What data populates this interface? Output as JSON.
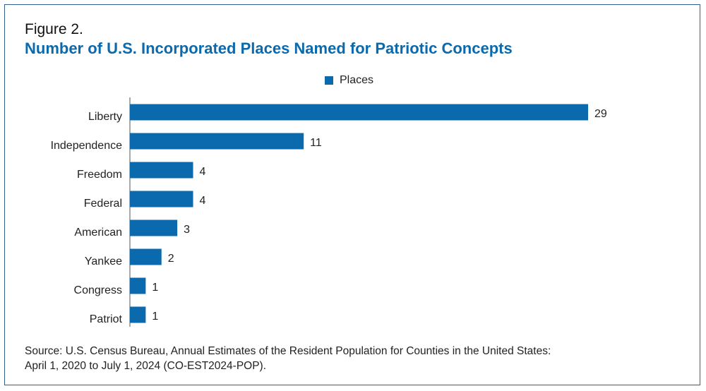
{
  "figure_label": "Figure 2.",
  "title": "Number of U.S. Incorporated Places Named for Patriotic Concepts",
  "source_lines": [
    "Source: U.S. Census Bureau, Annual Estimates of the Resident Population for Counties in the United States:",
    "April 1, 2020 to July 1, 2024 (CO-EST2024-POP)."
  ],
  "colors": {
    "bar": "#0a6aad",
    "title": "#0a6aad",
    "border": "#2f5f8f"
  },
  "chart_data": {
    "type": "bar",
    "orientation": "horizontal",
    "categories": [
      "Liberty",
      "Independence",
      "Freedom",
      "Federal",
      "American",
      "Yankee",
      "Congress",
      "Patriot"
    ],
    "series": [
      {
        "name": "Places",
        "values": [
          29,
          11,
          4,
          4,
          3,
          2,
          1,
          1
        ]
      }
    ],
    "xlim": [
      0,
      29
    ],
    "legend_position": "top",
    "grid": false,
    "data_labels": true
  }
}
